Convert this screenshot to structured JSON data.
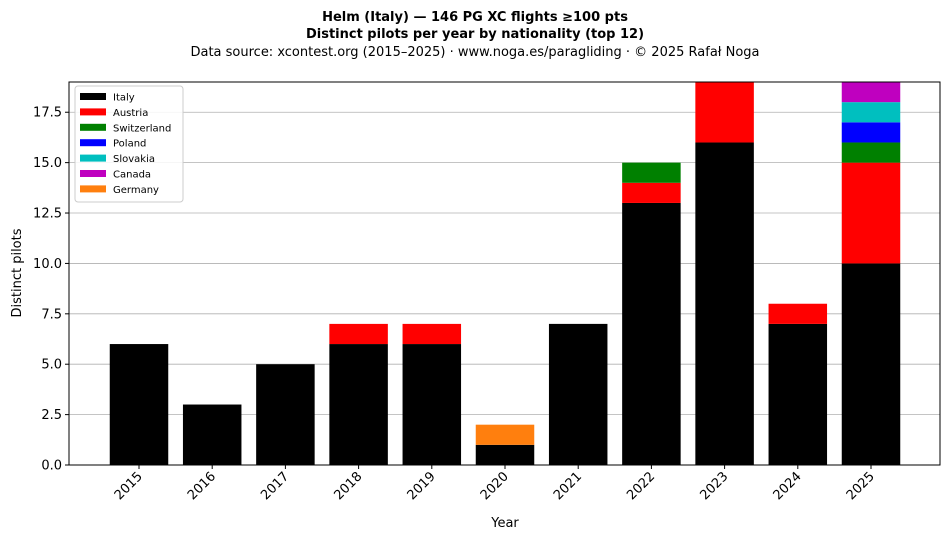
{
  "chart_data": {
    "type": "bar",
    "stacked": true,
    "title_lines": [
      "Helm (Italy)  —  146 PG XC flights ≥100 pts",
      "Distinct pilots per year by nationality (top 12)",
      "Data source: xcontest.org (2015–2025)  ·  www.noga.es/paragliding  ·  © 2025 Rafał Noga"
    ],
    "xlabel": "Year",
    "ylabel": "Distinct pilots",
    "categories": [
      "2015",
      "2016",
      "2017",
      "2018",
      "2019",
      "2020",
      "2021",
      "2022",
      "2023",
      "2024",
      "2025"
    ],
    "ylim": [
      0,
      19
    ],
    "yticks": [
      0,
      2.5,
      5,
      7.5,
      10,
      12.5,
      15,
      17.5
    ],
    "ytick_labels": [
      "0.0",
      "2.5",
      "5.0",
      "7.5",
      "10.0",
      "12.5",
      "15.0",
      "17.5"
    ],
    "grid": "y",
    "legend_position": "top-left",
    "series": [
      {
        "name": "Italy",
        "color": "#000000",
        "values": [
          6,
          3,
          5,
          6,
          6,
          1,
          7,
          13,
          16,
          7,
          10
        ]
      },
      {
        "name": "Austria",
        "color": "#ff0000",
        "values": [
          0,
          0,
          0,
          1,
          1,
          0,
          0,
          1,
          3,
          1,
          5
        ]
      },
      {
        "name": "Switzerland",
        "color": "#008000",
        "values": [
          0,
          0,
          0,
          0,
          0,
          0,
          0,
          1,
          0,
          0,
          1
        ]
      },
      {
        "name": "Poland",
        "color": "#0000ff",
        "values": [
          0,
          0,
          0,
          0,
          0,
          0,
          0,
          0,
          0,
          0,
          1
        ]
      },
      {
        "name": "Slovakia",
        "color": "#00bfbf",
        "values": [
          0,
          0,
          0,
          0,
          0,
          0,
          0,
          0,
          0,
          0,
          1
        ]
      },
      {
        "name": "Canada",
        "color": "#bf00bf",
        "values": [
          0,
          0,
          0,
          0,
          0,
          0,
          0,
          0,
          0,
          0,
          1
        ]
      },
      {
        "name": "Germany",
        "color": "#ff7f0e",
        "values": [
          0,
          0,
          0,
          0,
          0,
          1,
          0,
          0,
          0,
          0,
          0
        ]
      }
    ]
  }
}
